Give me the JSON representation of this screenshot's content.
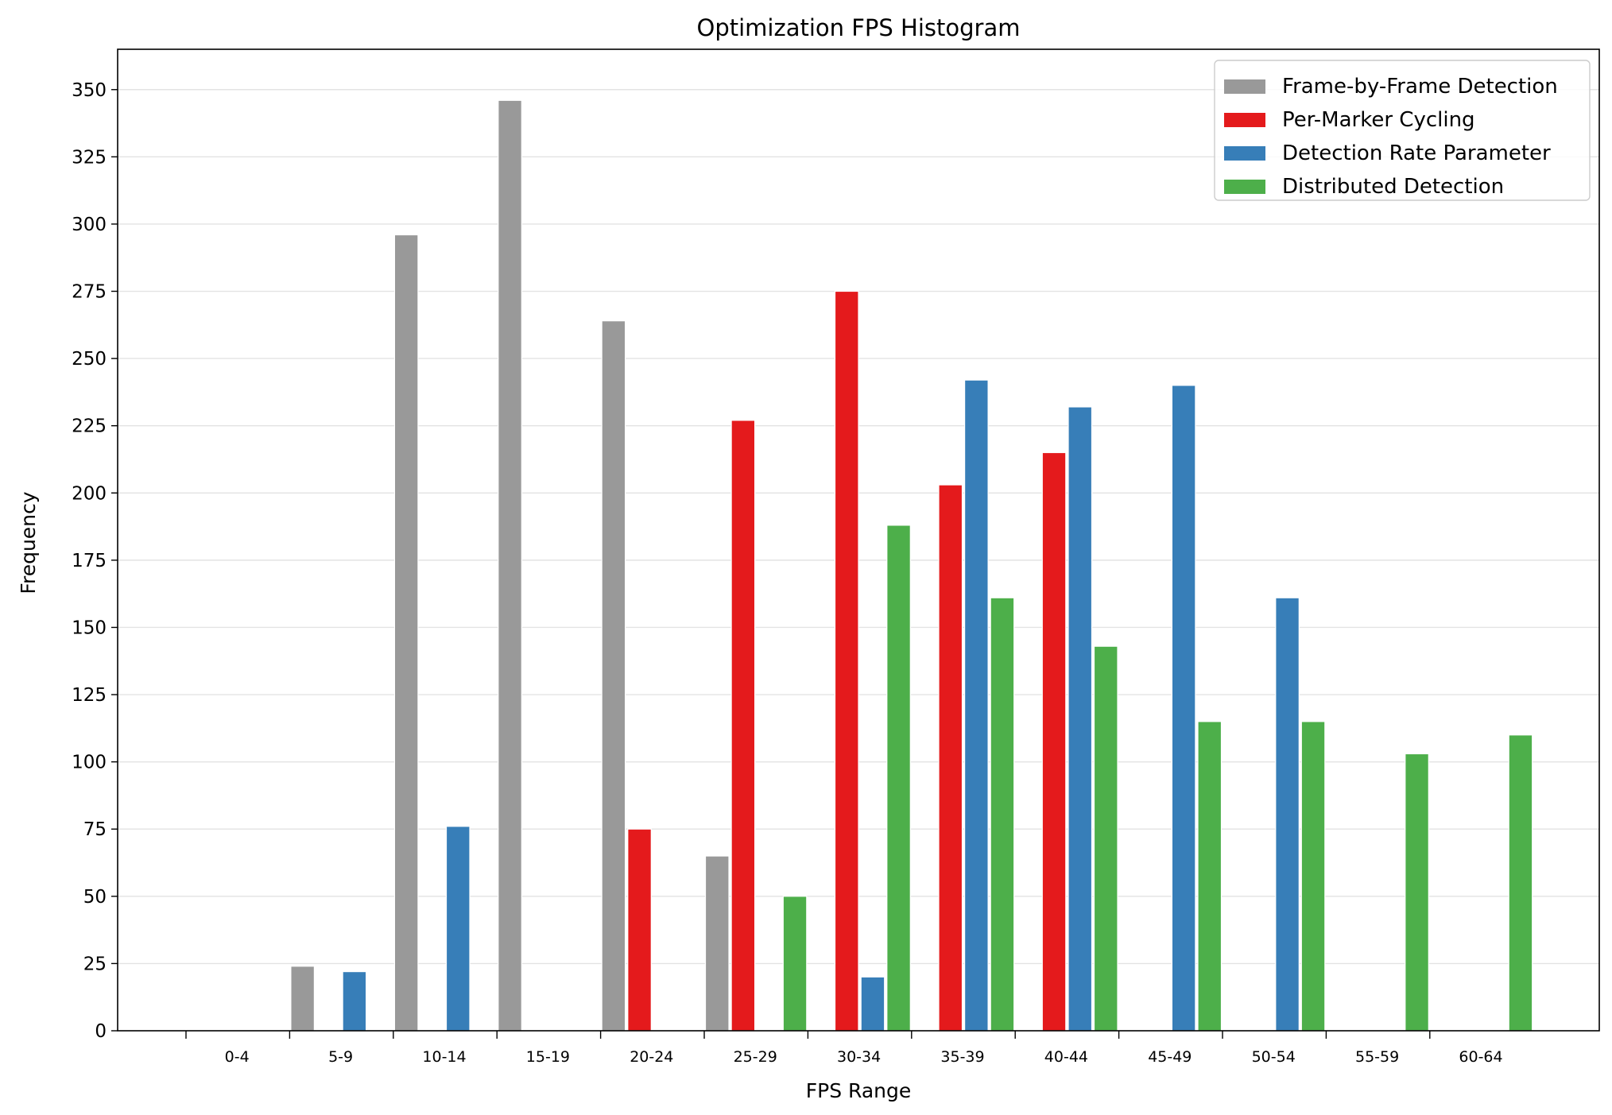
{
  "chart_data": {
    "type": "bar",
    "title": "Optimization FPS Histogram",
    "xlabel": "FPS Range",
    "ylabel": "Frequency",
    "ylim": [
      0,
      365
    ],
    "yticks": [
      0,
      25,
      50,
      75,
      100,
      125,
      150,
      175,
      200,
      225,
      250,
      275,
      300,
      325,
      350
    ],
    "grid": "horizontal",
    "legend_position": "top-right",
    "categories": [
      "0-4",
      "5-9",
      "10-14",
      "15-19",
      "20-24",
      "25-29",
      "30-34",
      "35-39",
      "40-44",
      "45-49",
      "50-54",
      "55-59",
      "60-64"
    ],
    "series": [
      {
        "name": "Frame-by-Frame Detection",
        "color": "#999999",
        "values": [
          0,
          24,
          296,
          346,
          264,
          65,
          0,
          0,
          0,
          0,
          0,
          0,
          0
        ]
      },
      {
        "name": "Per-Marker Cycling",
        "color": "#e41a1c",
        "values": [
          0,
          0,
          0,
          0,
          75,
          227,
          275,
          203,
          215,
          0,
          0,
          0,
          0
        ]
      },
      {
        "name": "Detection Rate Parameter",
        "color": "#377eb8",
        "values": [
          0,
          22,
          76,
          0,
          0,
          0,
          20,
          242,
          232,
          240,
          161,
          0,
          0
        ]
      },
      {
        "name": "Distributed Detection",
        "color": "#4daf4a",
        "values": [
          0,
          0,
          0,
          0,
          0,
          50,
          188,
          161,
          143,
          115,
          115,
          103,
          110
        ]
      }
    ]
  }
}
